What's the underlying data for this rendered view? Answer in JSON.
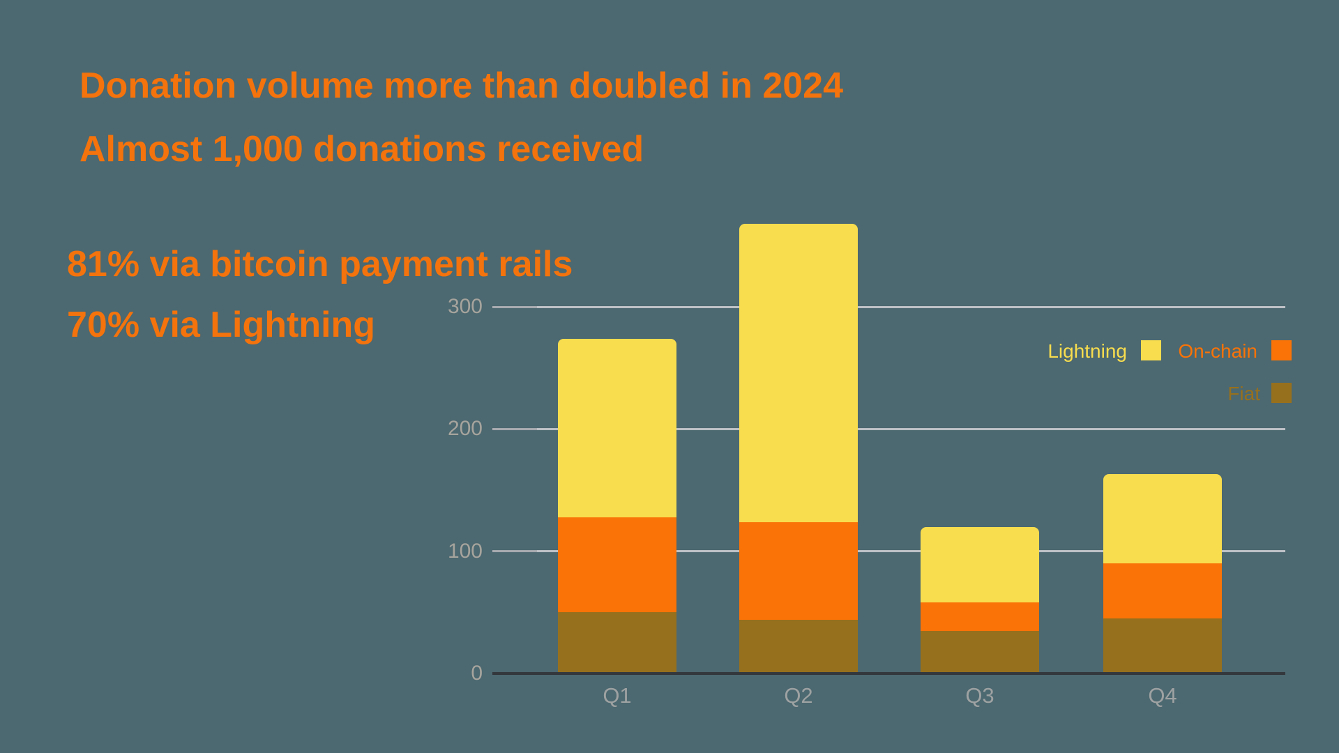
{
  "page": {
    "background": "#4C6870"
  },
  "headline": {
    "line1": "Donation volume more than doubled in 2024",
    "line2": "Almost 1,000 donations received",
    "color": "#F4730C"
  },
  "stats": {
    "line1": "81% via bitcoin payment rails",
    "line2": "70% via Lightning",
    "color": "#F4730C"
  },
  "chart_data": {
    "type": "bar",
    "stacked": true,
    "title": "",
    "xlabel": "",
    "ylabel": "",
    "categories": [
      "Q1",
      "Q2",
      "Q3",
      "Q4"
    ],
    "series": [
      {
        "name": "Fiat",
        "color": "#97701D",
        "values": [
          50,
          44,
          35,
          45
        ]
      },
      {
        "name": "On-chain",
        "color": "#F97307",
        "values": [
          78,
          80,
          23,
          45
        ]
      },
      {
        "name": "Lightning",
        "color": "#F8DD4E",
        "values": [
          146,
          244,
          62,
          73
        ]
      }
    ],
    "totals": [
      274,
      368,
      120,
      163
    ],
    "yticks": [
      0,
      100,
      200,
      300
    ],
    "ylim": [
      0,
      375
    ],
    "grid": true,
    "legend_position": "right",
    "axis_label_color": "#A6A49D",
    "xlabel_color": "#9EA2A2",
    "gridline_color": "#BDC1C6",
    "gridtick_color": "#A7ABB0",
    "baseline_color": "#33383D"
  },
  "legend": {
    "items": [
      {
        "label": "Lightning",
        "color": "#F8DD4E"
      },
      {
        "label": "On-chain",
        "color": "#F97307"
      },
      {
        "label": "Fiat",
        "color": "#97701D"
      }
    ]
  }
}
